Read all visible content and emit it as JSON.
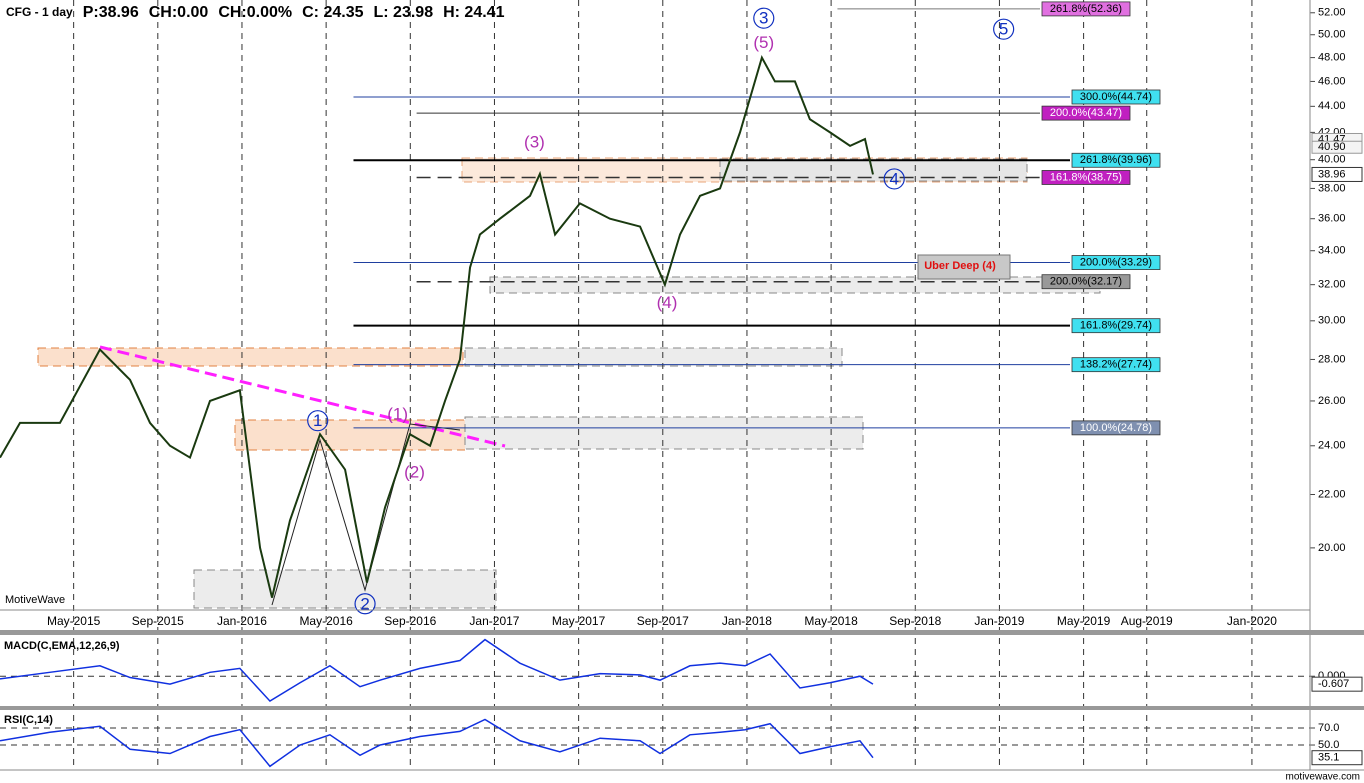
{
  "header": [
    "CFG - 1 day",
    "P:38.96",
    "CH:0.00",
    "CH:0.00%",
    "C: 24.35",
    "L: 23.98",
    "H: 24.41"
  ],
  "watermark": "MotiveWave",
  "footer": "motivewave.com",
  "chart_data": [
    {
      "type": "line",
      "log": true,
      "xlim": [
        0.5,
        62.76
      ],
      "ylim": [
        17.9,
        53.2
      ],
      "xticks": [
        {
          "value": 4,
          "label": "May-2015"
        },
        {
          "value": 8,
          "label": "Sep-2015"
        },
        {
          "value": 12,
          "label": "Jan-2016"
        },
        {
          "value": 16,
          "label": "May-2016"
        },
        {
          "value": 20,
          "label": "Sep-2016"
        },
        {
          "value": 24,
          "label": "Jan-2017"
        },
        {
          "value": 28,
          "label": "May-2017"
        },
        {
          "value": 32,
          "label": "Sep-2017"
        },
        {
          "value": 36,
          "label": "Jan-2018"
        },
        {
          "value": 40,
          "label": "May-2018"
        },
        {
          "value": 44,
          "label": "Sep-2018"
        },
        {
          "value": 48,
          "label": "Jan-2019"
        },
        {
          "value": 52,
          "label": "May-2019"
        },
        {
          "value": 55,
          "label": "Aug-2019"
        },
        {
          "value": 60,
          "label": "Jan-2020"
        }
      ],
      "yticks": [
        {
          "value": 20,
          "label": "20.00"
        },
        {
          "value": 22,
          "label": "22.00"
        },
        {
          "value": 24,
          "label": "24.00"
        },
        {
          "value": 26,
          "label": "26.00"
        },
        {
          "value": 28,
          "label": "28.00"
        },
        {
          "value": 30,
          "label": "30.00"
        },
        {
          "value": 32,
          "label": "32.00"
        },
        {
          "value": 34,
          "label": "34.00"
        },
        {
          "value": 36,
          "label": "36.00"
        },
        {
          "value": 38,
          "label": "38.00"
        },
        {
          "value": 40,
          "label": "40.00"
        },
        {
          "value": 42,
          "label": "42.00"
        },
        {
          "value": 44,
          "label": "44.00"
        },
        {
          "value": 46,
          "label": "46.00"
        },
        {
          "value": 48,
          "label": "48.00"
        },
        {
          "value": 50,
          "label": "50.00"
        },
        {
          "value": 52,
          "label": "52.00"
        }
      ],
      "x": [
        0.5,
        1.45,
        3.35,
        5.25,
        6.68,
        7.63,
        8.58,
        9.53,
        10.48,
        11.9,
        12.86,
        13.43,
        14.28,
        15.71,
        16.9,
        17.94,
        18.8,
        19.98,
        20.94,
        21.65,
        22.36,
        22.84,
        23.31,
        24.26,
        25.69,
        26.16,
        26.88,
        28.06,
        29.49,
        30.92,
        32.1,
        32.82,
        33.77,
        34.72,
        35.67,
        36.71,
        37.33,
        38.28,
        38.99,
        39.95,
        40.9,
        41.61,
        41.99
      ],
      "series": [
        {
          "color": "#1a3a10",
          "values": [
            23.5,
            25,
            25,
            28.5,
            27,
            25,
            24,
            23.5,
            26,
            26.5,
            20,
            18.3,
            21,
            24.5,
            23,
            18.8,
            21.5,
            24.5,
            24,
            26,
            28,
            33,
            35,
            36,
            37.5,
            39,
            35,
            37,
            36,
            35.5,
            32,
            35,
            37.5,
            38,
            42,
            48,
            46,
            46,
            43,
            42,
            41,
            41.5,
            38.96
          ]
        }
      ],
      "price_tags": [
        {
          "value": 41.47,
          "label": "41.47"
        },
        {
          "value": 40.9,
          "label": "40.90"
        }
      ],
      "levels": [
        {
          "label": "261.8%(52.36)",
          "value": 52.36,
          "from": 40.3,
          "line": "#777",
          "box": "#e070e0",
          "dash": false,
          "width": 1
        },
        {
          "label": "300.0%(44.74)",
          "value": 44.74,
          "from": 17.3,
          "line": "#1f3f9f",
          "box": "#40e0f0",
          "dash": false,
          "width": 1
        },
        {
          "label": "200.0%(43.47)",
          "value": 43.47,
          "from": 20.3,
          "line": "#333",
          "box": "#c020c0",
          "dash": false,
          "width": 1
        },
        {
          "label": "261.8%(39.96)",
          "value": 39.96,
          "from": 17.3,
          "line": "#000",
          "box": "#40e0f0",
          "dash": false,
          "width": 2
        },
        {
          "label": "161.8%(38.75)",
          "value": 38.75,
          "from": 20.3,
          "line": "#333",
          "box": "#c020c0",
          "dash": true,
          "width": 1.5
        },
        {
          "label": "200.0%(33.29)",
          "value": 33.29,
          "from": 17.3,
          "line": "#1f3f9f",
          "box": "#40e0f0",
          "dash": false,
          "width": 1
        },
        {
          "label": "200.0%(32.17)",
          "value": 32.17,
          "from": 20.3,
          "line": "#333",
          "box": "#999",
          "dash": true,
          "width": 1.5
        },
        {
          "label": "161.8%(29.74)",
          "value": 29.74,
          "from": 17.3,
          "line": "#000",
          "box": "#40e0f0",
          "dash": false,
          "width": 2
        },
        {
          "label": "138.2%(27.74)",
          "value": 27.74,
          "from": 17.3,
          "line": "#1f3f9f",
          "box": "#40e0f0",
          "dash": false,
          "width": 1
        },
        {
          "label": "100.0%(24.78)",
          "value": 24.78,
          "from": 17.3,
          "line": "#1f3f9f",
          "box": "#7f90b0",
          "dash": false,
          "width": 1
        }
      ],
      "waves": [
        {
          "label": "3",
          "x": 36.8,
          "y": 51.5,
          "color": "#1030c0",
          "circle": true
        },
        {
          "label": "(5)",
          "x": 36.8,
          "y": 49.3,
          "color": "#b030b0",
          "circle": false
        },
        {
          "label": "5",
          "x": 48.2,
          "y": 50.5,
          "color": "#1030c0",
          "circle": true
        },
        {
          "label": "(3)",
          "x": 25.9,
          "y": 41.3,
          "color": "#b030b0",
          "circle": false
        },
        {
          "label": "4",
          "x": 43.0,
          "y": 38.65,
          "color": "#1030c0",
          "circle": true
        },
        {
          "label": "(4)",
          "x": 32.2,
          "y": 31.0,
          "color": "#b030b0",
          "circle": false
        },
        {
          "label": "1",
          "x": 15.6,
          "y": 25.1,
          "color": "#1030c0",
          "circle": true
        },
        {
          "label": "(1)",
          "x": 19.4,
          "y": 25.4,
          "color": "#b030b0",
          "circle": false
        },
        {
          "label": "(2)",
          "x": 20.2,
          "y": 22.9,
          "color": "#b030b0",
          "circle": false
        },
        {
          "label": "2",
          "x": 17.85,
          "y": 18.1,
          "color": "#1030c0",
          "circle": true
        }
      ],
      "note": "Uber Deep (4)"
    },
    {
      "type": "line",
      "title": "MACD(C,EMA,12,26,9)",
      "ylim": [
        -2.2,
        3.0
      ],
      "yticks": [
        {
          "value": 0,
          "label": "0.000"
        }
      ],
      "x": [
        0.5,
        2.87,
        5.25,
        6.68,
        8.58,
        10.48,
        11.9,
        13.33,
        14.76,
        16.18,
        17.61,
        18.56,
        20.46,
        22.36,
        23.55,
        25.21,
        27.11,
        29.02,
        30.92,
        31.87,
        33.29,
        34.72,
        35.91,
        37.1,
        38.52,
        39.95,
        41.37,
        41.99
      ],
      "series": [
        {
          "color": "#1030e0",
          "values": [
            -0.2,
            0.3,
            0.8,
            -0.1,
            -0.6,
            0.3,
            0.6,
            -1.9,
            -0.5,
            0.8,
            -0.8,
            -0.3,
            0.6,
            1.2,
            2.8,
            1.0,
            -0.3,
            0.2,
            0.1,
            -0.3,
            0.8,
            1.0,
            0.8,
            1.7,
            -0.9,
            -0.5,
            0.0,
            -0.607
          ]
        }
      ]
    },
    {
      "type": "line",
      "title": "RSI(C,14)",
      "ylim": [
        23,
        88.8
      ],
      "yticks": [
        {
          "value": 70,
          "label": "70.0"
        },
        {
          "value": 50,
          "label": "50.0"
        }
      ],
      "x": [
        0.5,
        2.87,
        5.25,
        6.68,
        8.58,
        10.48,
        11.9,
        13.33,
        14.76,
        16.18,
        17.61,
        18.56,
        20.46,
        22.36,
        23.55,
        25.21,
        27.11,
        29.02,
        30.92,
        31.87,
        33.29,
        34.72,
        35.91,
        37.1,
        38.52,
        39.95,
        41.37,
        41.99
      ],
      "series": [
        {
          "color": "#1030e0",
          "values": [
            55,
            65,
            72,
            45,
            40,
            60,
            68,
            25,
            50,
            62,
            38,
            50,
            60,
            66,
            80,
            55,
            42,
            58,
            55,
            40,
            62,
            65,
            68,
            75,
            40,
            48,
            55,
            35.1
          ]
        }
      ]
    }
  ]
}
